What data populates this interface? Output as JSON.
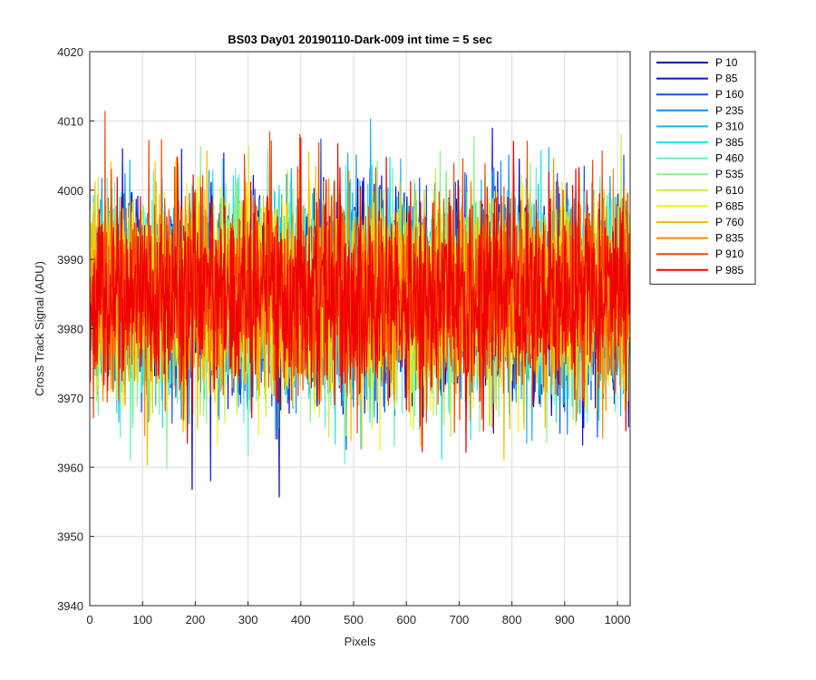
{
  "chart_data": {
    "type": "line",
    "title": "BS03 Day01 20190110-Dark-009 int time = 5 sec",
    "xlabel": "Pixels",
    "ylabel": "Cross Track Signal (ADU)",
    "xlim": [
      0,
      1024
    ],
    "ylim": [
      3940,
      4020
    ],
    "xticks": [
      0,
      100,
      200,
      300,
      400,
      500,
      600,
      700,
      800,
      900,
      1000
    ],
    "yticks": [
      3940,
      3950,
      3960,
      3970,
      3980,
      3990,
      4000,
      4010,
      4020
    ],
    "grid": true,
    "legend_position": "outside-top-right",
    "noise_mean": 3985,
    "noise_sd": 7,
    "series": [
      {
        "name": "P 10",
        "color": "#0000aa"
      },
      {
        "name": "P 85",
        "color": "#0a14d2"
      },
      {
        "name": "P 160",
        "color": "#1450e6"
      },
      {
        "name": "P 235",
        "color": "#148cf0"
      },
      {
        "name": "P 310",
        "color": "#14b4f5"
      },
      {
        "name": "P 385",
        "color": "#1ee6e6"
      },
      {
        "name": "P 460",
        "color": "#64f0c8"
      },
      {
        "name": "P 535",
        "color": "#8cf08c"
      },
      {
        "name": "P 610",
        "color": "#c8f03c"
      },
      {
        "name": "P 685",
        "color": "#f5f014"
      },
      {
        "name": "P 760",
        "color": "#f5c000"
      },
      {
        "name": "P 835",
        "color": "#f58c00"
      },
      {
        "name": "P 910",
        "color": "#f54600"
      },
      {
        "name": "P 985",
        "color": "#f00000"
      }
    ]
  }
}
